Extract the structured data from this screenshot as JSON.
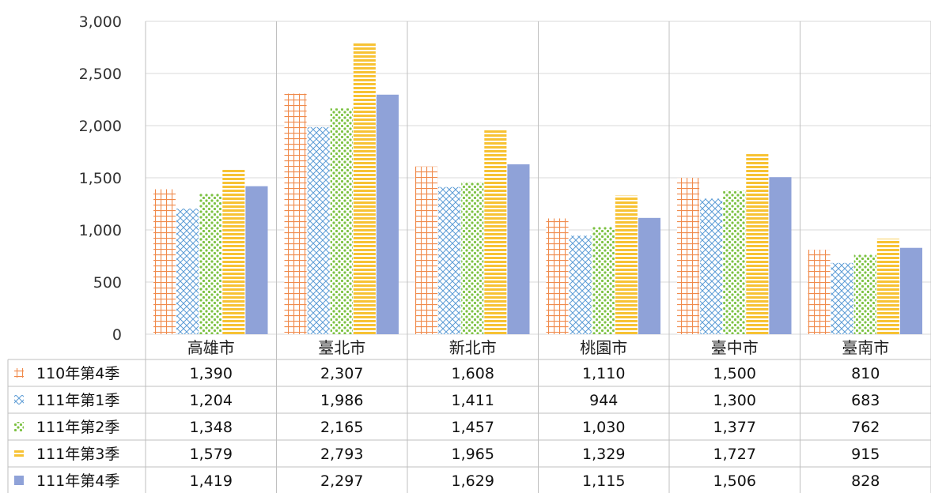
{
  "chart_data": {
    "type": "bar",
    "title": "",
    "xlabel": "",
    "ylabel": "",
    "ylim": [
      0,
      3000
    ],
    "y_ticks": [
      0,
      500,
      1000,
      1500,
      2000,
      2500,
      3000
    ],
    "y_tick_labels": [
      "0",
      "500",
      "1,000",
      "1,500",
      "2,000",
      "2,500",
      "3,000"
    ],
    "grid": true,
    "legend": "bottom-left data table",
    "categories": [
      "高雄市",
      "臺北市",
      "新北市",
      "桃園市",
      "臺中市",
      "臺南市"
    ],
    "series": [
      {
        "name": "110年第4季",
        "color": "#f08a4b",
        "pattern": "grid",
        "values": [
          1390,
          2307,
          1608,
          1110,
          1500,
          810
        ],
        "display": [
          "1,390",
          "2,307",
          "1,608",
          "1,110",
          "1,500",
          "810"
        ]
      },
      {
        "name": "111年第1季",
        "color": "#5b9bd5",
        "pattern": "diagonal-cross",
        "values": [
          1204,
          1986,
          1411,
          944,
          1300,
          683
        ],
        "display": [
          "1,204",
          "1,986",
          "1,411",
          "944",
          "1,300",
          "683"
        ]
      },
      {
        "name": "111年第2季",
        "color": "#7cc242",
        "pattern": "dots",
        "values": [
          1348,
          2165,
          1457,
          1030,
          1377,
          762
        ],
        "display": [
          "1,348",
          "2,165",
          "1,457",
          "1,030",
          "1,377",
          "762"
        ]
      },
      {
        "name": "111年第3季",
        "color": "#f7c233",
        "pattern": "horizontal-lines",
        "values": [
          1579,
          2793,
          1965,
          1329,
          1727,
          915
        ],
        "display": [
          "1,579",
          "2,793",
          "1,965",
          "1,329",
          "1,727",
          "915"
        ]
      },
      {
        "name": "111年第4季",
        "color": "#8fa2d8",
        "pattern": "solid",
        "values": [
          1419,
          2297,
          1629,
          1115,
          1506,
          828
        ],
        "display": [
          "1,419",
          "2,297",
          "1,629",
          "1,115",
          "1,506",
          "828"
        ]
      }
    ]
  }
}
